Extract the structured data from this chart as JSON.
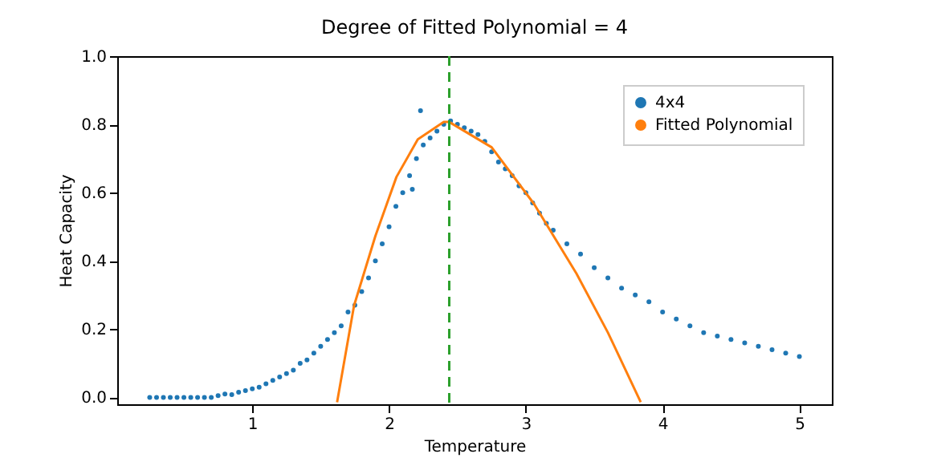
{
  "chart_data": {
    "type": "scatter",
    "title": "Degree of Fitted Polynomial = 4",
    "xlabel": "Temperature",
    "ylabel": "Heat Capacity",
    "xlim": [
      0.0125,
      5.2375
    ],
    "xticks": [
      1,
      2,
      3,
      4,
      5
    ],
    "ylim": [
      -0.02,
      1.0
    ],
    "yticks": [
      {
        "value": 0,
        "label": "0.0"
      },
      {
        "value": 0.2,
        "label": "0.2"
      },
      {
        "value": 0.4,
        "label": "0.4"
      },
      {
        "value": 0.6,
        "label": "0.6"
      },
      {
        "value": 0.8,
        "label": "0.8"
      },
      {
        "value": 1,
        "label": "1.0"
      }
    ],
    "grid": false,
    "legend": "top right",
    "series": [
      {
        "name": "4x4",
        "marker": "circle",
        "color": "#1f77b4",
        "x": [
          0.25,
          0.3,
          0.35,
          0.4,
          0.45,
          0.5,
          0.55,
          0.6,
          0.65,
          0.7,
          0.75,
          0.8,
          0.85,
          0.9,
          0.95,
          1.0,
          1.05,
          1.1,
          1.15,
          1.2,
          1.25,
          1.3,
          1.35,
          1.4,
          1.45,
          1.5,
          1.55,
          1.6,
          1.65,
          1.7,
          1.75,
          1.8,
          1.85,
          1.9,
          1.95,
          2.0,
          2.05,
          2.1,
          2.15,
          2.17,
          2.2,
          2.23,
          2.25,
          2.3,
          2.35,
          2.4,
          2.45,
          2.5,
          2.55,
          2.6,
          2.65,
          2.7,
          2.75,
          2.8,
          2.85,
          2.9,
          2.95,
          3.0,
          3.05,
          3.1,
          3.15,
          3.2,
          3.3,
          3.4,
          3.5,
          3.6,
          3.7,
          3.8,
          3.9,
          4.0,
          4.1,
          4.2,
          4.3,
          4.4,
          4.5,
          4.6,
          4.7,
          4.8,
          4.9,
          5.0
        ],
        "values": [
          0,
          0,
          0,
          0,
          0,
          0,
          0,
          0,
          0,
          0,
          0.005,
          0.01,
          0.008,
          0.015,
          0.02,
          0.025,
          0.03,
          0.04,
          0.05,
          0.06,
          0.07,
          0.08,
          0.1,
          0.11,
          0.13,
          0.15,
          0.17,
          0.19,
          0.21,
          0.25,
          0.27,
          0.31,
          0.35,
          0.4,
          0.45,
          0.5,
          0.56,
          0.6,
          0.65,
          0.61,
          0.7,
          0.84,
          0.74,
          0.76,
          0.78,
          0.8,
          0.81,
          0.8,
          0.79,
          0.78,
          0.77,
          0.75,
          0.72,
          0.69,
          0.67,
          0.65,
          0.62,
          0.6,
          0.57,
          0.54,
          0.51,
          0.49,
          0.45,
          0.42,
          0.38,
          0.35,
          0.32,
          0.3,
          0.28,
          0.25,
          0.23,
          0.21,
          0.19,
          0.18,
          0.17,
          0.16,
          0.15,
          0.14,
          0.13,
          0.12
        ]
      },
      {
        "name": "Fitted Polynomial",
        "type": "line",
        "color": "#ff7f0e",
        "x": [
          1.62,
          1.744,
          1.9,
          2.054,
          2.21,
          2.4,
          2.44,
          2.75,
          3.06,
          3.37,
          3.6,
          3.84
        ],
        "values": [
          -0.014,
          0.269,
          0.473,
          0.646,
          0.756,
          0.807,
          0.807,
          0.733,
          0.567,
          0.363,
          0.19,
          -0.014
        ]
      }
    ],
    "ref_lines": [
      {
        "axis": "x",
        "value": 2.44,
        "color": "#2ca02c",
        "line_style": "dashed"
      }
    ]
  }
}
